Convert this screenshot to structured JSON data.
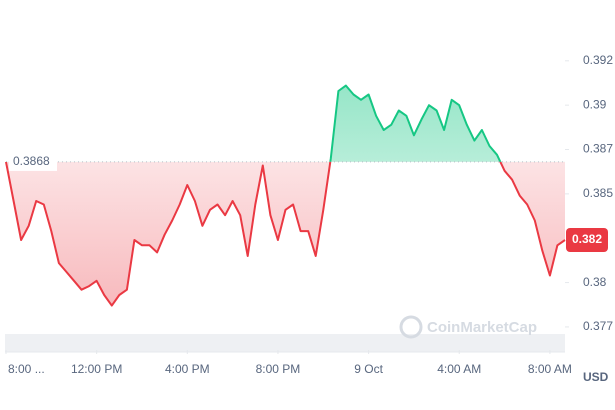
{
  "chart_data": {
    "type": "line",
    "values": [
      0.3868,
      0.3846,
      0.3824,
      0.3832,
      0.3846,
      0.3844,
      0.3829,
      0.3811,
      0.3806,
      0.3801,
      0.3796,
      0.3798,
      0.3801,
      0.3793,
      0.3787,
      0.3793,
      0.3796,
      0.3824,
      0.3821,
      0.3821,
      0.3817,
      0.3827,
      0.3835,
      0.3844,
      0.3855,
      0.3846,
      0.3832,
      0.3841,
      0.3844,
      0.3838,
      0.3846,
      0.3838,
      0.3815,
      0.3844,
      0.3866,
      0.3838,
      0.3824,
      0.3841,
      0.3844,
      0.3829,
      0.3829,
      0.3815,
      0.3841,
      0.387,
      0.3908,
      0.3911,
      0.3906,
      0.3903,
      0.3906,
      0.3894,
      0.3886,
      0.3889,
      0.3897,
      0.3894,
      0.3883,
      0.3892,
      0.39,
      0.3897,
      0.3886,
      0.3903,
      0.39,
      0.3889,
      0.388,
      0.3886,
      0.3877,
      0.3872,
      0.3863,
      0.3858,
      0.3849,
      0.3844,
      0.3835,
      0.3818,
      0.3804,
      0.3821,
      0.3824
    ],
    "colors": {
      "above": "#16c784",
      "below": "#ea3943"
    },
    "baseline": 0.3868,
    "current_price": {
      "value": 0.3824,
      "label": "0.382"
    },
    "xlim": [
      0,
      74
    ],
    "xticks": [
      {
        "value": 0,
        "label": "8:00 ..."
      },
      {
        "value": 12,
        "label": "12:00 PM"
      },
      {
        "value": 24,
        "label": "4:00 PM"
      },
      {
        "value": 36,
        "label": "8:00 PM"
      },
      {
        "value": 48,
        "label": "9 Oct"
      },
      {
        "value": 60,
        "label": "4:00 AM"
      },
      {
        "value": 72,
        "label": "8:00 AM"
      }
    ],
    "ylim": [
      0.3762,
      0.3948
    ],
    "yticks": [
      {
        "value": 0.3925,
        "label": "0.392"
      },
      0.39,
      {
        "value": 0.3875,
        "label": "0.387"
      },
      0.385,
      0.38,
      {
        "value": 0.3775,
        "label": "0.377"
      }
    ],
    "currency": "USD",
    "watermark": "CoinMarketCap"
  }
}
